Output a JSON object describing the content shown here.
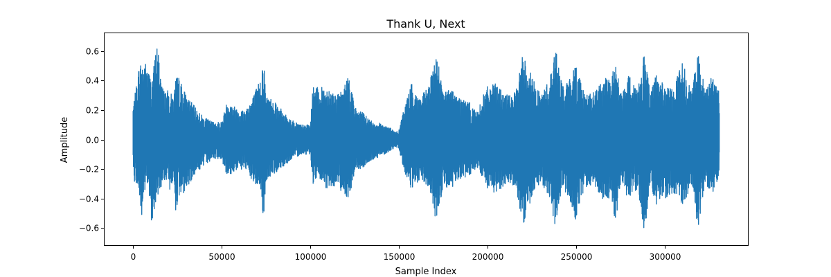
{
  "chart_data": {
    "type": "line",
    "title": "Thank U, Next",
    "xlabel": "Sample Index",
    "ylabel": "Amplitude",
    "xlim": [
      -16500,
      347000
    ],
    "ylim": [
      -0.72,
      0.72
    ],
    "xticks": [
      0,
      50000,
      100000,
      150000,
      200000,
      250000,
      300000
    ],
    "xtick_labels": [
      "0",
      "50000",
      "100000",
      "150000",
      "200000",
      "250000",
      "300000"
    ],
    "yticks": [
      -0.6,
      -0.4,
      -0.2,
      0.0,
      0.2,
      0.4,
      0.6
    ],
    "ytick_labels": [
      "−0.6",
      "−0.4",
      "−0.2",
      "0.0",
      "0.2",
      "0.4",
      "0.6"
    ],
    "grid": false,
    "series": [
      {
        "color": "#1f77b4",
        "x_start": 0,
        "x_end": 331000,
        "envelope": {
          "x": [
            0,
            1000,
            3000,
            4500,
            7500,
            10500,
            13500,
            17000,
            20000,
            23000,
            24000,
            26000,
            30000,
            35000,
            40000,
            45000,
            50000,
            53000,
            58000,
            63000,
            68000,
            72000,
            73500,
            75000,
            80000,
            85000,
            90000,
            95000,
            100000,
            101500,
            105000,
            110000,
            115000,
            118000,
            122000,
            125000,
            130000,
            135000,
            140000,
            145000,
            148000,
            150000,
            153000,
            157000,
            162000,
            167000,
            171500,
            175000,
            180000,
            183000,
            190000,
            195000,
            196000,
            200000,
            205000,
            210000,
            216000,
            220000,
            225000,
            230000,
            235000,
            238500,
            242000,
            245000,
            250000,
            255000,
            260000,
            265000,
            270000,
            272000,
            276000,
            280000,
            285000,
            288500,
            292000,
            295000,
            300000,
            305000,
            310000,
            315000,
            319000,
            323000,
            327000,
            331000
          ],
          "max": [
            0.23,
            0.3,
            0.48,
            0.53,
            0.52,
            0.4,
            0.66,
            0.34,
            0.33,
            0.29,
            0.43,
            0.42,
            0.3,
            0.22,
            0.15,
            0.12,
            0.12,
            0.26,
            0.22,
            0.2,
            0.3,
            0.42,
            0.59,
            0.3,
            0.27,
            0.18,
            0.13,
            0.1,
            0.1,
            0.36,
            0.35,
            0.36,
            0.3,
            0.33,
            0.45,
            0.22,
            0.18,
            0.12,
            0.11,
            0.08,
            0.05,
            0.06,
            0.22,
            0.38,
            0.28,
            0.37,
            0.6,
            0.32,
            0.35,
            0.3,
            0.25,
            0.18,
            0.26,
            0.36,
            0.38,
            0.3,
            0.32,
            0.59,
            0.44,
            0.3,
            0.41,
            0.63,
            0.38,
            0.38,
            0.52,
            0.31,
            0.32,
            0.4,
            0.44,
            0.52,
            0.3,
            0.44,
            0.35,
            0.6,
            0.3,
            0.45,
            0.36,
            0.34,
            0.55,
            0.33,
            0.59,
            0.32,
            0.45,
            0.32
          ],
          "min": [
            -0.15,
            -0.32,
            -0.3,
            -0.58,
            -0.27,
            -0.56,
            -0.4,
            -0.28,
            -0.35,
            -0.3,
            -0.48,
            -0.4,
            -0.34,
            -0.23,
            -0.18,
            -0.13,
            -0.13,
            -0.26,
            -0.21,
            -0.2,
            -0.3,
            -0.33,
            -0.57,
            -0.28,
            -0.23,
            -0.18,
            -0.13,
            -0.1,
            -0.1,
            -0.3,
            -0.27,
            -0.35,
            -0.3,
            -0.36,
            -0.4,
            -0.22,
            -0.19,
            -0.14,
            -0.11,
            -0.08,
            -0.05,
            -0.06,
            -0.22,
            -0.34,
            -0.28,
            -0.33,
            -0.58,
            -0.31,
            -0.35,
            -0.28,
            -0.25,
            -0.19,
            -0.25,
            -0.34,
            -0.37,
            -0.3,
            -0.31,
            -0.6,
            -0.4,
            -0.28,
            -0.4,
            -0.6,
            -0.33,
            -0.38,
            -0.55,
            -0.33,
            -0.3,
            -0.4,
            -0.4,
            -0.58,
            -0.3,
            -0.43,
            -0.33,
            -0.65,
            -0.3,
            -0.45,
            -0.4,
            -0.36,
            -0.45,
            -0.32,
            -0.62,
            -0.3,
            -0.37,
            -0.24
          ]
        }
      }
    ]
  }
}
